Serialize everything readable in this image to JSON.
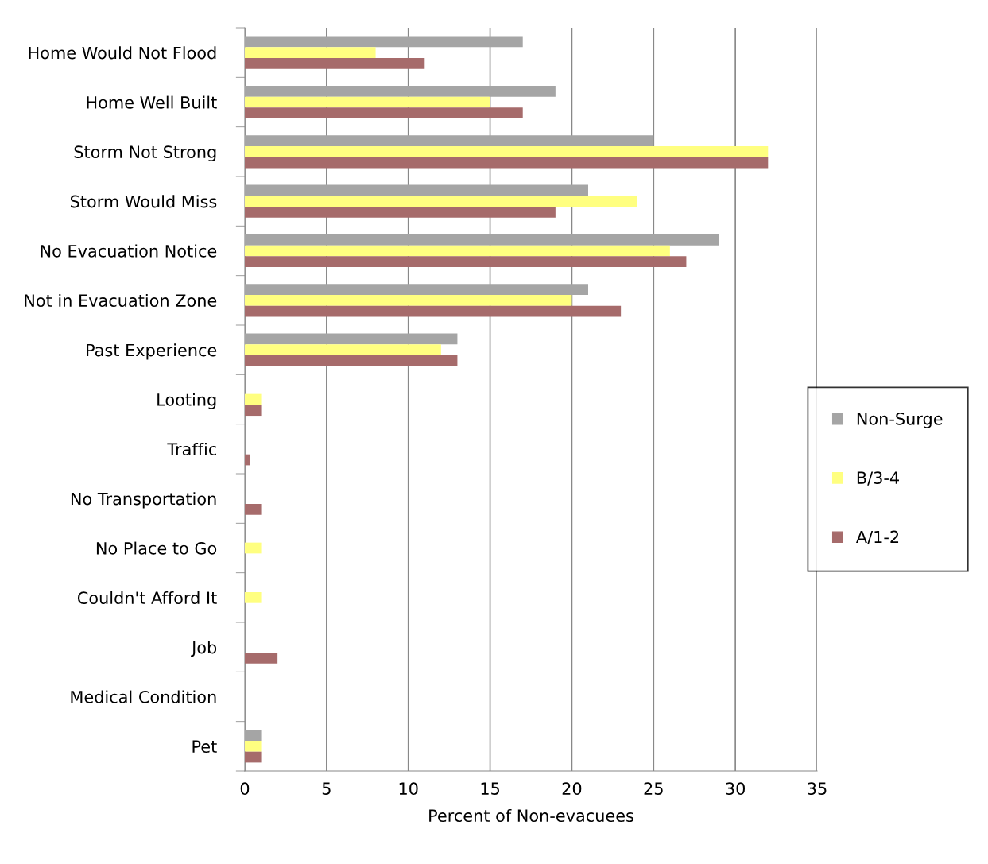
{
  "chart_data": {
    "type": "bar",
    "orientation": "horizontal",
    "xlabel": "Percent of Non-evacuees",
    "categories": [
      "Home Would Not Flood",
      "Home Well Built",
      "Storm Not Strong",
      "Storm Would Miss",
      "No Evacuation Notice",
      "Not in Evacuation Zone",
      "Past Experience",
      "Looting",
      "Traffic",
      "No Transportation",
      "No Place to Go",
      "Couldn't Afford It",
      "Job",
      "Medical Condition",
      "Pet"
    ],
    "series": [
      {
        "name": "Non-Surge",
        "color": "#a5a5a5",
        "values": [
          17,
          19,
          25,
          21,
          29,
          21,
          13,
          0,
          0,
          0,
          0,
          0,
          0,
          0,
          1
        ]
      },
      {
        "name": "B/3-4",
        "color": "#ffff80",
        "values": [
          8,
          15,
          32,
          24,
          26,
          20,
          12,
          1,
          0,
          0,
          1,
          1,
          0,
          0,
          1
        ]
      },
      {
        "name": "A/1-2",
        "color": "#a66b6b",
        "values": [
          11,
          17,
          32,
          19,
          27,
          23,
          13,
          1,
          0.3,
          1,
          0,
          0,
          2,
          0,
          1
        ]
      }
    ],
    "xlim": [
      0,
      35
    ],
    "xticks": [
      0,
      5,
      10,
      15,
      20,
      25,
      30,
      35
    ],
    "grid": "x",
    "legend": "right"
  }
}
